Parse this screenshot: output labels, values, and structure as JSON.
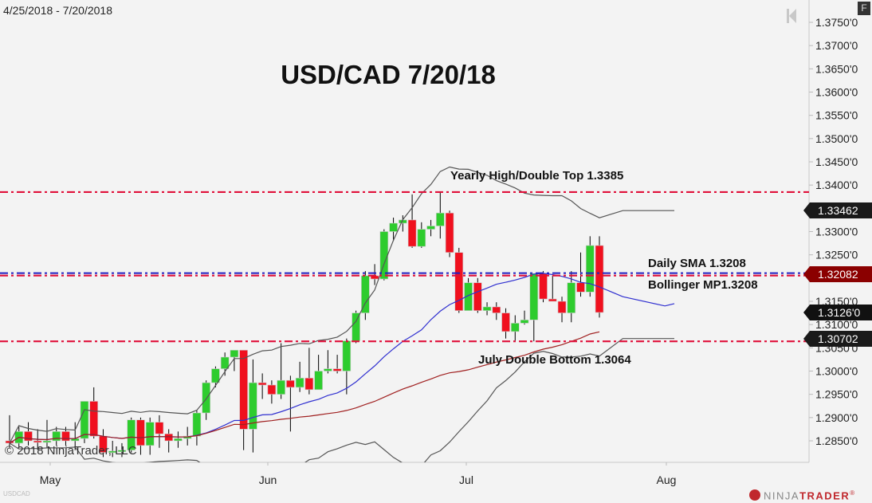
{
  "header": {
    "date_range": "4/25/2018 - 7/20/2018",
    "f_button": "F"
  },
  "chart_title": "USD/CAD 7/20/18",
  "symbol": "USDCAD",
  "copyright": "© 2018 NinjaTrader, LLC",
  "logo": {
    "left": "NINJA",
    "right": "TRADER",
    "mark": "®"
  },
  "annotations": {
    "yearly_high": "Yearly High/Double Top 1.3385",
    "daily_sma": "Daily SMA 1.3208",
    "bollinger_mp": "Bollinger MP1.3208",
    "july_double_bottom": "July Double Bottom 1.3064"
  },
  "price_tags": [
    {
      "label": "1.33462",
      "price": 1.33462,
      "bg": "#1a1a1a"
    },
    {
      "label": "1.32082",
      "price": 1.32082,
      "bg": "#8b0000"
    },
    {
      "label": "1.3126'0",
      "price": 1.3126,
      "bg": "#111111"
    },
    {
      "label": "1.30702",
      "price": 1.30702,
      "bg": "#1a1a1a"
    }
  ],
  "colors": {
    "up": "#2ecc2e",
    "down": "#f0101e",
    "hline_red": "#e0103a",
    "hline_blue": "#2020c0",
    "sma": "#a02020",
    "bb_mid": "#3030d0",
    "bb_band": "#555555"
  },
  "chart_data": {
    "type": "candlestick",
    "title": "USD/CAD 7/20/18",
    "xlabel": "",
    "ylabel": "",
    "x_ticks": [
      "May",
      "Jun",
      "Jul",
      "Aug"
    ],
    "y_ticks": [
      "1.3750'0",
      "1.3700'0",
      "1.3650'0",
      "1.3600'0",
      "1.3550'0",
      "1.3500'0",
      "1.3450'0",
      "1.3400'0",
      "1.3350'0",
      "1.3300'0",
      "1.3250'0",
      "1.3200'0",
      "1.3150'0",
      "1.3100'0",
      "1.3050'0",
      "1.3000'0",
      "1.2950'0",
      "1.2900'0",
      "1.2850'0"
    ],
    "ylim": [
      1.2815,
      1.378
    ],
    "horizontal_lines": [
      {
        "label": "Yearly High/Double Top",
        "value": 1.3385,
        "color": "#e0103a",
        "style": "dash-dot"
      },
      {
        "label": "Daily SMA / Bollinger MP",
        "value": 1.3208,
        "color": "#e0103a/#2020c0",
        "style": "dash-dot"
      },
      {
        "label": "July Double Bottom",
        "value": 1.3064,
        "color": "#e0103a",
        "style": "dash-dot"
      }
    ],
    "candles": [
      {
        "o": 1.285,
        "h": 1.2905,
        "l": 1.2835,
        "c": 1.2845
      },
      {
        "o": 1.2845,
        "h": 1.288,
        "l": 1.2835,
        "c": 1.287
      },
      {
        "o": 1.287,
        "h": 1.289,
        "l": 1.284,
        "c": 1.285
      },
      {
        "o": 1.285,
        "h": 1.2875,
        "l": 1.283,
        "c": 1.2848
      },
      {
        "o": 1.2848,
        "h": 1.2895,
        "l": 1.2835,
        "c": 1.285
      },
      {
        "o": 1.285,
        "h": 1.288,
        "l": 1.284,
        "c": 1.287
      },
      {
        "o": 1.287,
        "h": 1.288,
        "l": 1.284,
        "c": 1.285
      },
      {
        "o": 1.285,
        "h": 1.289,
        "l": 1.283,
        "c": 1.2855
      },
      {
        "o": 1.2855,
        "h": 1.2935,
        "l": 1.2845,
        "c": 1.2935
      },
      {
        "o": 1.2935,
        "h": 1.2965,
        "l": 1.2855,
        "c": 1.286
      },
      {
        "o": 1.286,
        "h": 1.2875,
        "l": 1.2815,
        "c": 1.2825
      },
      {
        "o": 1.2825,
        "h": 1.285,
        "l": 1.2815,
        "c": 1.2828
      },
      {
        "o": 1.2828,
        "h": 1.2845,
        "l": 1.2815,
        "c": 1.283
      },
      {
        "o": 1.283,
        "h": 1.29,
        "l": 1.2825,
        "c": 1.2895
      },
      {
        "o": 1.2895,
        "h": 1.29,
        "l": 1.282,
        "c": 1.284
      },
      {
        "o": 1.284,
        "h": 1.29,
        "l": 1.282,
        "c": 1.289
      },
      {
        "o": 1.289,
        "h": 1.2905,
        "l": 1.2835,
        "c": 1.2865
      },
      {
        "o": 1.2865,
        "h": 1.2875,
        "l": 1.2825,
        "c": 1.285
      },
      {
        "o": 1.285,
        "h": 1.287,
        "l": 1.2835,
        "c": 1.2855
      },
      {
        "o": 1.2855,
        "h": 1.288,
        "l": 1.284,
        "c": 1.286
      },
      {
        "o": 1.286,
        "h": 1.2915,
        "l": 1.284,
        "c": 1.291
      },
      {
        "o": 1.291,
        "h": 1.298,
        "l": 1.2895,
        "c": 1.2975
      },
      {
        "o": 1.2975,
        "h": 1.301,
        "l": 1.2965,
        "c": 1.3005
      },
      {
        "o": 1.3005,
        "h": 1.304,
        "l": 1.299,
        "c": 1.303
      },
      {
        "o": 1.303,
        "h": 1.3045,
        "l": 1.3,
        "c": 1.3045
      },
      {
        "o": 1.3045,
        "h": 1.3045,
        "l": 1.283,
        "c": 1.2875
      },
      {
        "o": 1.2875,
        "h": 1.3025,
        "l": 1.2825,
        "c": 1.2975
      },
      {
        "o": 1.2975,
        "h": 1.2995,
        "l": 1.294,
        "c": 1.297
      },
      {
        "o": 1.297,
        "h": 1.298,
        "l": 1.293,
        "c": 1.295
      },
      {
        "o": 1.295,
        "h": 1.306,
        "l": 1.294,
        "c": 1.298
      },
      {
        "o": 1.298,
        "h": 1.299,
        "l": 1.287,
        "c": 1.2965
      },
      {
        "o": 1.2965,
        "h": 1.302,
        "l": 1.2955,
        "c": 1.2985
      },
      {
        "o": 1.2985,
        "h": 1.305,
        "l": 1.295,
        "c": 1.296
      },
      {
        "o": 1.296,
        "h": 1.3035,
        "l": 1.299,
        "c": 1.3
      },
      {
        "o": 1.3,
        "h": 1.3045,
        "l": 1.2995,
        "c": 1.3005
      },
      {
        "o": 1.3005,
        "h": 1.3035,
        "l": 1.2995,
        "c": 1.3
      },
      {
        "o": 1.3,
        "h": 1.307,
        "l": 1.295,
        "c": 1.3065
      },
      {
        "o": 1.3065,
        "h": 1.313,
        "l": 1.306,
        "c": 1.3125
      },
      {
        "o": 1.3125,
        "h": 1.3215,
        "l": 1.311,
        "c": 1.3205
      },
      {
        "o": 1.3205,
        "h": 1.323,
        "l": 1.3185,
        "c": 1.3198
      },
      {
        "o": 1.3198,
        "h": 1.3305,
        "l": 1.3195,
        "c": 1.33
      },
      {
        "o": 1.33,
        "h": 1.333,
        "l": 1.328,
        "c": 1.3318
      },
      {
        "o": 1.3318,
        "h": 1.3335,
        "l": 1.33,
        "c": 1.3325
      },
      {
        "o": 1.3325,
        "h": 1.338,
        "l": 1.3265,
        "c": 1.3268
      },
      {
        "o": 1.3268,
        "h": 1.332,
        "l": 1.3265,
        "c": 1.3305
      },
      {
        "o": 1.3305,
        "h": 1.3325,
        "l": 1.329,
        "c": 1.3312
      },
      {
        "o": 1.3312,
        "h": 1.3385,
        "l": 1.3285,
        "c": 1.334
      },
      {
        "o": 1.334,
        "h": 1.3345,
        "l": 1.3245,
        "c": 1.3255
      },
      {
        "o": 1.3255,
        "h": 1.3265,
        "l": 1.3125,
        "c": 1.313
      },
      {
        "o": 1.313,
        "h": 1.32,
        "l": 1.3145,
        "c": 1.319
      },
      {
        "o": 1.319,
        "h": 1.32,
        "l": 1.3125,
        "c": 1.313
      },
      {
        "o": 1.313,
        "h": 1.3148,
        "l": 1.312,
        "c": 1.3138
      },
      {
        "o": 1.3138,
        "h": 1.3148,
        "l": 1.311,
        "c": 1.3125
      },
      {
        "o": 1.3125,
        "h": 1.3135,
        "l": 1.307,
        "c": 1.3085
      },
      {
        "o": 1.3085,
        "h": 1.312,
        "l": 1.3065,
        "c": 1.3103
      },
      {
        "o": 1.3103,
        "h": 1.313,
        "l": 1.31,
        "c": 1.311
      },
      {
        "o": 1.311,
        "h": 1.321,
        "l": 1.3064,
        "c": 1.321
      },
      {
        "o": 1.321,
        "h": 1.3215,
        "l": 1.3148,
        "c": 1.3155
      },
      {
        "o": 1.3155,
        "h": 1.3205,
        "l": 1.315,
        "c": 1.315
      },
      {
        "o": 1.315,
        "h": 1.316,
        "l": 1.3105,
        "c": 1.3125
      },
      {
        "o": 1.3125,
        "h": 1.3215,
        "l": 1.3105,
        "c": 1.319
      },
      {
        "o": 1.319,
        "h": 1.3255,
        "l": 1.316,
        "c": 1.317
      },
      {
        "o": 1.317,
        "h": 1.329,
        "l": 1.316,
        "c": 1.327
      },
      {
        "o": 1.327,
        "h": 1.329,
        "l": 1.3115,
        "c": 1.3126
      }
    ],
    "series": [
      {
        "name": "Bollinger Upper",
        "color": "#555555"
      },
      {
        "name": "Bollinger Mid (SMA 20)",
        "color": "#3030d0"
      },
      {
        "name": "Bollinger Lower",
        "color": "#555555"
      },
      {
        "name": "Daily SMA",
        "color": "#a02020"
      }
    ],
    "grid": false,
    "legend": "none"
  }
}
